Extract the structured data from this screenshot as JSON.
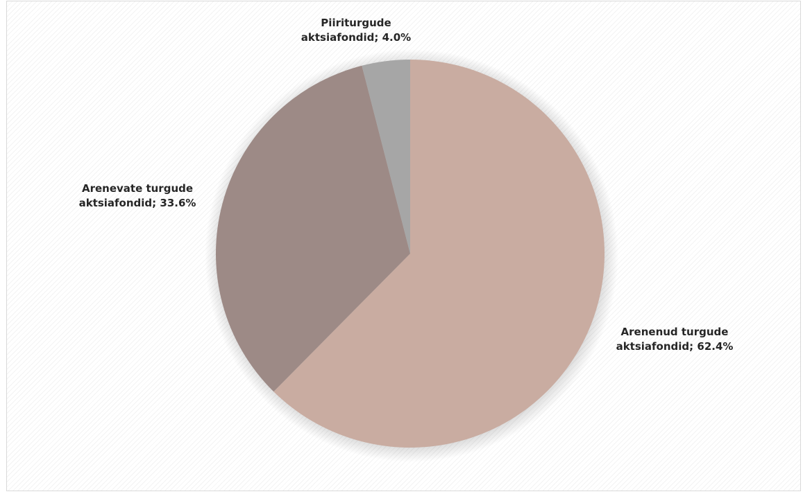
{
  "chart_data": {
    "type": "pie",
    "slices": [
      {
        "label_line1": "Arenenud turgude",
        "label_line2": "aktsiafondid; 62.4%",
        "name": "Arenenud turgude aktsiafondid",
        "value": 62.4,
        "color": "#c9aca1"
      },
      {
        "label_line1": "Arenevate turgude",
        "label_line2": "aktsiafondid; 33.6%",
        "name": "Arenevate turgude aktsiafondid",
        "value": 33.6,
        "color": "#9d8a86"
      },
      {
        "label_line1": "Piiriturgude",
        "label_line2": "aktsiafondid; 4.0%",
        "name": "Piiriturgude aktsiafondid",
        "value": 4.0,
        "color": "#a6a6a6"
      }
    ],
    "start_angle_deg": 0,
    "direction": "clockwise",
    "background": "diagonal-hatch"
  }
}
